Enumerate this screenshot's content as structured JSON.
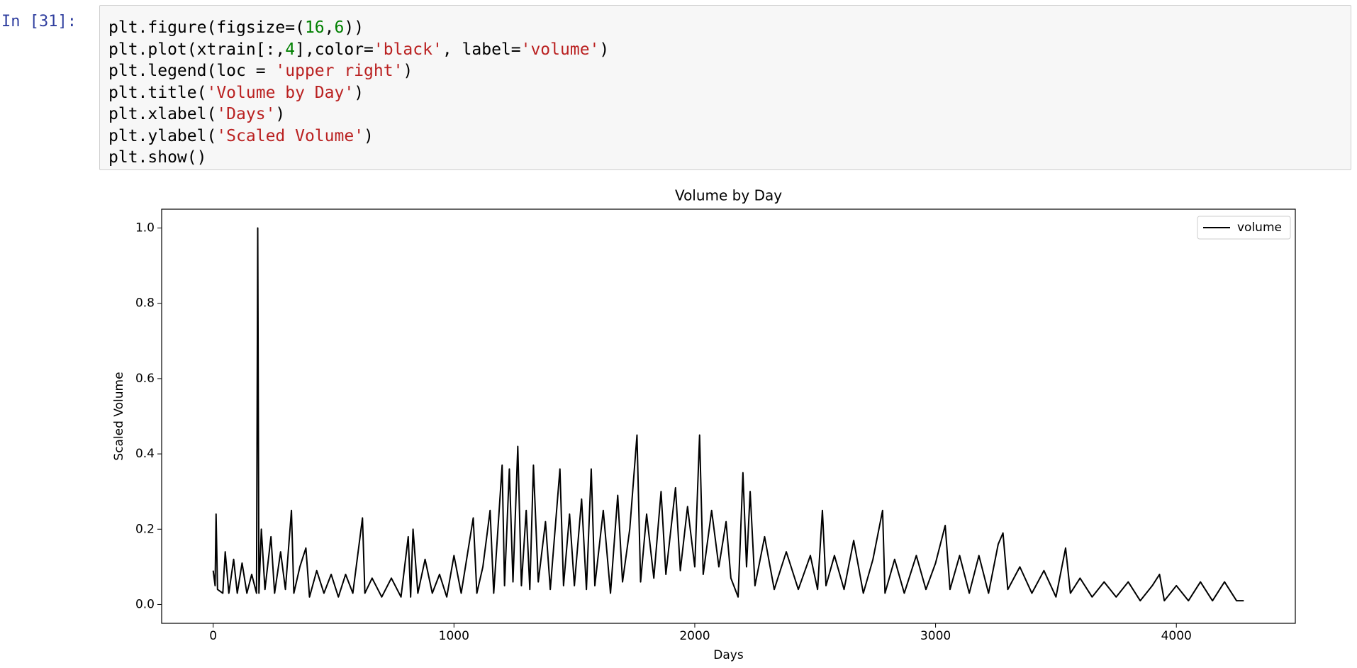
{
  "prompt": "In [31]:",
  "code": {
    "lines": [
      [
        {
          "text": "plt.figure(figsize=(",
          "color": "#000000"
        },
        {
          "text": "16",
          "color": "#008000"
        },
        {
          "text": ",",
          "color": "#000000"
        },
        {
          "text": "6",
          "color": "#008000"
        },
        {
          "text": "))",
          "color": "#000000"
        }
      ],
      [
        {
          "text": "plt.plot(xtrain[:,",
          "color": "#000000"
        },
        {
          "text": "4",
          "color": "#008000"
        },
        {
          "text": "],color=",
          "color": "#000000"
        },
        {
          "text": "'black'",
          "color": "#ba2121"
        },
        {
          "text": ", label=",
          "color": "#000000"
        },
        {
          "text": "'volume'",
          "color": "#ba2121"
        },
        {
          "text": ")",
          "color": "#000000"
        }
      ],
      [
        {
          "text": "plt.legend(loc = ",
          "color": "#000000"
        },
        {
          "text": "'upper right'",
          "color": "#ba2121"
        },
        {
          "text": ")",
          "color": "#000000"
        }
      ],
      [
        {
          "text": "plt.title(",
          "color": "#000000"
        },
        {
          "text": "'Volume by Day'",
          "color": "#ba2121"
        },
        {
          "text": ")",
          "color": "#000000"
        }
      ],
      [
        {
          "text": "plt.xlabel(",
          "color": "#000000"
        },
        {
          "text": "'Days'",
          "color": "#ba2121"
        },
        {
          "text": ")",
          "color": "#000000"
        }
      ],
      [
        {
          "text": "plt.ylabel(",
          "color": "#000000"
        },
        {
          "text": "'Scaled Volume'",
          "color": "#ba2121"
        },
        {
          "text": ")",
          "color": "#000000"
        }
      ],
      [
        {
          "text": "plt.show()",
          "color": "#000000"
        }
      ]
    ]
  },
  "chart_data": {
    "type": "line",
    "title": "Volume by Day",
    "x_label": "Days",
    "y_label": "Scaled Volume",
    "legend": "upper right",
    "xlim": [
      -214,
      4494
    ],
    "xticks": [
      0,
      1000,
      2000,
      3000,
      4000
    ],
    "ylim": [
      -0.05,
      1.05
    ],
    "yticks": [
      0.0,
      0.2,
      0.4,
      0.6,
      0.8,
      1.0
    ],
    "x": [
      0,
      8,
      12,
      18,
      40,
      50,
      65,
      85,
      100,
      120,
      140,
      160,
      180,
      185,
      190,
      200,
      215,
      240,
      255,
      280,
      300,
      325,
      335,
      360,
      385,
      400,
      430,
      460,
      490,
      520,
      550,
      580,
      620,
      630,
      660,
      700,
      740,
      780,
      810,
      820,
      830,
      850,
      880,
      910,
      940,
      970,
      1000,
      1030,
      1060,
      1080,
      1095,
      1120,
      1150,
      1165,
      1200,
      1210,
      1230,
      1245,
      1265,
      1280,
      1300,
      1315,
      1330,
      1350,
      1380,
      1400,
      1440,
      1455,
      1480,
      1500,
      1530,
      1550,
      1570,
      1585,
      1620,
      1650,
      1680,
      1700,
      1730,
      1760,
      1775,
      1800,
      1830,
      1860,
      1880,
      1920,
      1940,
      1970,
      2000,
      2020,
      2035,
      2070,
      2100,
      2130,
      2150,
      2180,
      2200,
      2215,
      2230,
      2250,
      2290,
      2330,
      2380,
      2430,
      2480,
      2510,
      2530,
      2545,
      2580,
      2620,
      2660,
      2700,
      2740,
      2780,
      2790,
      2830,
      2870,
      2920,
      2960,
      3000,
      3040,
      3060,
      3100,
      3140,
      3180,
      3220,
      3260,
      3280,
      3300,
      3350,
      3400,
      3450,
      3500,
      3540,
      3560,
      3600,
      3650,
      3700,
      3750,
      3800,
      3850,
      3900,
      3930,
      3950,
      4000,
      4050,
      4100,
      4150,
      4200,
      4250,
      4280
    ],
    "series": [
      {
        "name": "volume",
        "color": "#000000",
        "values": [
          0.09,
          0.05,
          0.24,
          0.04,
          0.03,
          0.14,
          0.03,
          0.12,
          0.03,
          0.11,
          0.03,
          0.08,
          0.03,
          1.0,
          0.03,
          0.2,
          0.04,
          0.18,
          0.03,
          0.14,
          0.04,
          0.25,
          0.03,
          0.1,
          0.15,
          0.02,
          0.09,
          0.03,
          0.08,
          0.02,
          0.08,
          0.03,
          0.23,
          0.03,
          0.07,
          0.02,
          0.07,
          0.02,
          0.18,
          0.02,
          0.2,
          0.03,
          0.12,
          0.03,
          0.08,
          0.02,
          0.13,
          0.03,
          0.15,
          0.23,
          0.03,
          0.1,
          0.25,
          0.03,
          0.37,
          0.05,
          0.36,
          0.06,
          0.42,
          0.05,
          0.25,
          0.04,
          0.37,
          0.06,
          0.22,
          0.04,
          0.36,
          0.05,
          0.24,
          0.05,
          0.28,
          0.04,
          0.36,
          0.05,
          0.25,
          0.03,
          0.29,
          0.06,
          0.2,
          0.45,
          0.06,
          0.24,
          0.07,
          0.3,
          0.08,
          0.31,
          0.09,
          0.26,
          0.1,
          0.45,
          0.08,
          0.25,
          0.1,
          0.22,
          0.07,
          0.02,
          0.35,
          0.1,
          0.3,
          0.05,
          0.18,
          0.04,
          0.14,
          0.04,
          0.13,
          0.04,
          0.25,
          0.05,
          0.13,
          0.04,
          0.17,
          0.03,
          0.12,
          0.25,
          0.03,
          0.12,
          0.03,
          0.13,
          0.04,
          0.11,
          0.21,
          0.04,
          0.13,
          0.03,
          0.13,
          0.03,
          0.16,
          0.19,
          0.04,
          0.1,
          0.03,
          0.09,
          0.02,
          0.15,
          0.03,
          0.07,
          0.02,
          0.06,
          0.02,
          0.06,
          0.01,
          0.05,
          0.08,
          0.01,
          0.05,
          0.01,
          0.06,
          0.01,
          0.06,
          0.01,
          0.01
        ]
      }
    ]
  }
}
